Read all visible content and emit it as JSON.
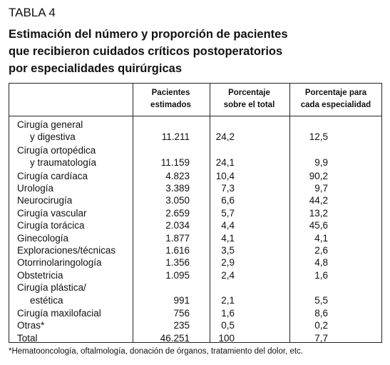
{
  "label": "TABLA 4",
  "title": [
    "Estimación del número y proporción de pacientes",
    "que recibieron cuidados críticos postoperatorios",
    "por especialidades quirúrgicas"
  ],
  "table": {
    "headers": [
      [
        "Pacientes",
        "estimados"
      ],
      [
        "Porcentaje",
        "sobre el total"
      ],
      [
        "Porcentaje para",
        "cada especialidad"
      ]
    ],
    "rows": [
      {
        "label": [
          "Cirugía general",
          "y digestiva"
        ],
        "cells": [
          "11.211",
          "24,2",
          "12,5"
        ]
      },
      {
        "label": [
          "Cirugía ortopédica",
          "y traumatología"
        ],
        "cells": [
          "11.159",
          "24,1",
          "9,9"
        ]
      },
      {
        "label": [
          "Cirugía cardíaca"
        ],
        "cells": [
          "4.823",
          "10,4",
          "90,2"
        ]
      },
      {
        "label": [
          "Urología"
        ],
        "cells": [
          "3.389",
          "7,3",
          "9,7"
        ]
      },
      {
        "label": [
          "Neurocirugía"
        ],
        "cells": [
          "3.050",
          "6,6",
          "44,2"
        ]
      },
      {
        "label": [
          "Cirugía vascular"
        ],
        "cells": [
          "2.659",
          "5,7",
          "13,2"
        ]
      },
      {
        "label": [
          "Cirugía torácica"
        ],
        "cells": [
          "2.034",
          "4,4",
          "45,6"
        ]
      },
      {
        "label": [
          "Ginecología"
        ],
        "cells": [
          "1.877",
          "4,1",
          "4,1"
        ]
      },
      {
        "label": [
          "Exploraciones/técnicas"
        ],
        "cells": [
          "1.616",
          "3,5",
          "2,6"
        ]
      },
      {
        "label": [
          "Otorrinolaringología"
        ],
        "cells": [
          "1.356",
          "2,9",
          "4,8"
        ]
      },
      {
        "label": [
          "Obstetricia"
        ],
        "cells": [
          "1.095",
          "2,4",
          "1,6"
        ]
      },
      {
        "label": [
          "Cirugía plástica/",
          "estética"
        ],
        "cells": [
          "991",
          "2,1",
          "5,5"
        ]
      },
      {
        "label": [
          "Cirugía maxilofacial"
        ],
        "cells": [
          "756",
          "1,6",
          "8,6"
        ]
      },
      {
        "label": [
          "Otras*"
        ],
        "cells": [
          "235",
          "0,5",
          "0,2"
        ]
      },
      {
        "label": [
          "Total"
        ],
        "cells": [
          "46.251",
          "100",
          "7,7"
        ]
      }
    ]
  },
  "footnote": "*Hematooncología, oftalmología, donación de órganos, tratamiento del dolor, etc."
}
